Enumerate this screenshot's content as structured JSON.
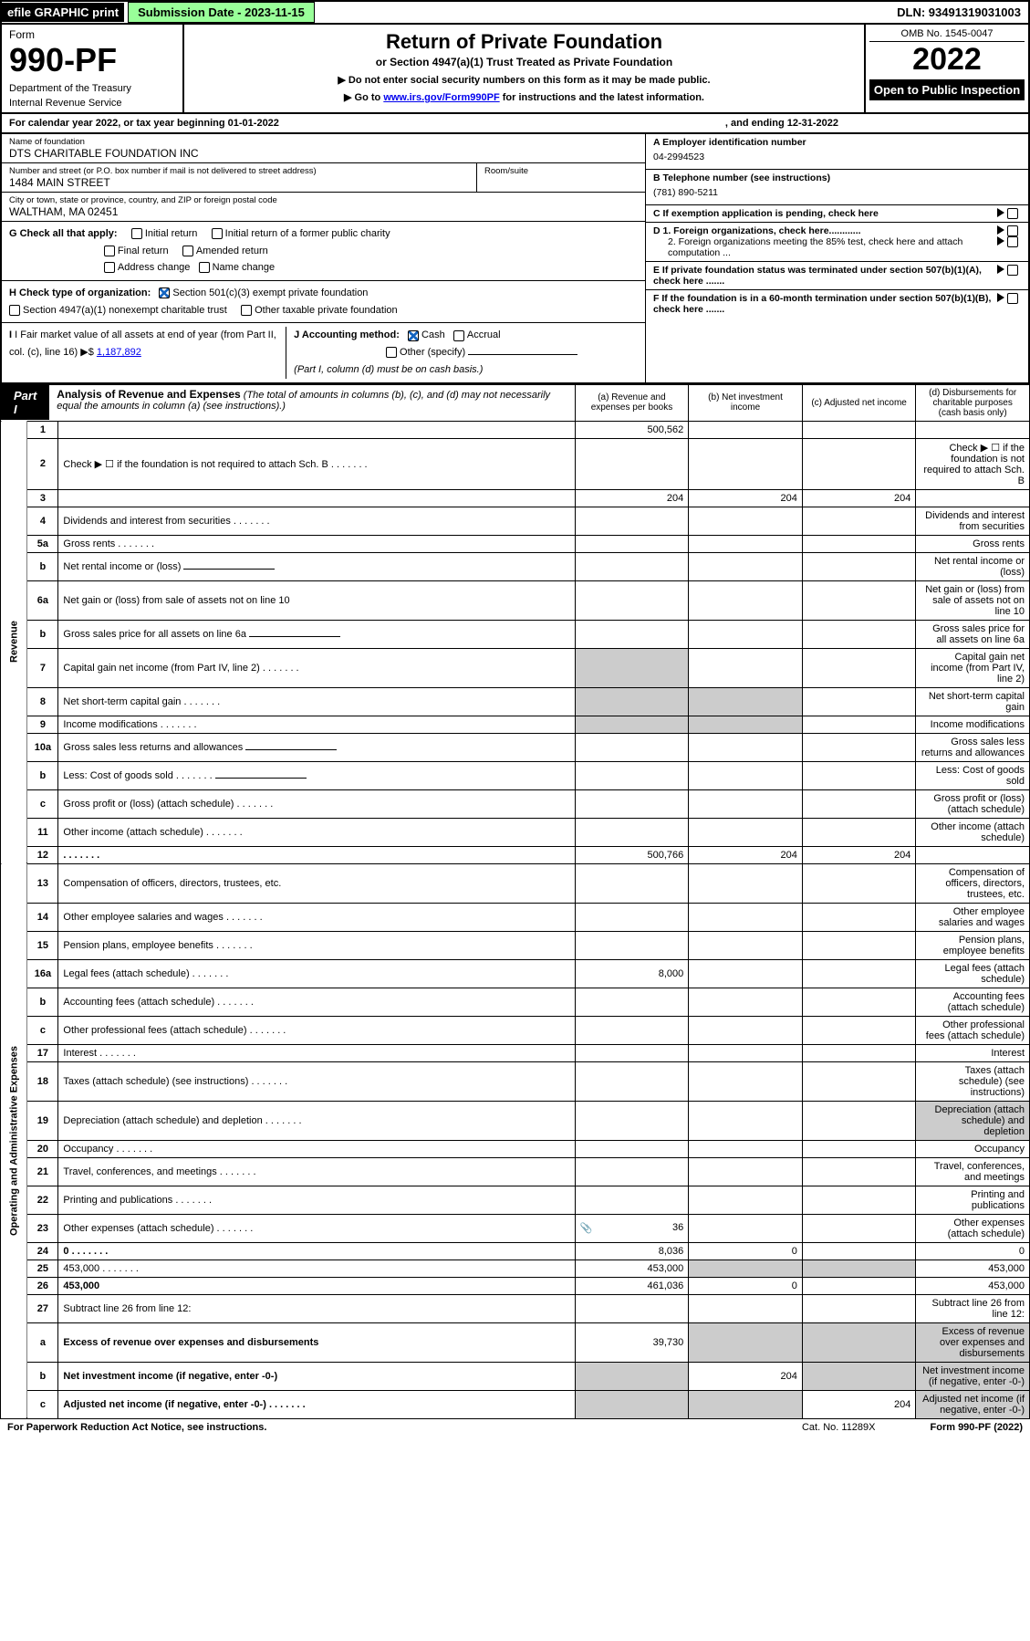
{
  "topbar": {
    "efile": "efile GRAPHIC print",
    "submission": "Submission Date - 2023-11-15",
    "dln": "DLN: 93491319031003"
  },
  "header": {
    "form_word": "Form",
    "form_no": "990-PF",
    "dept1": "Department of the Treasury",
    "dept2": "Internal Revenue Service",
    "title": "Return of Private Foundation",
    "subtitle": "or Section 4947(a)(1) Trust Treated as Private Foundation",
    "note1": "▶ Do not enter social security numbers on this form as it may be made public.",
    "note2_pre": "▶ Go to ",
    "note2_link": "www.irs.gov/Form990PF",
    "note2_post": " for instructions and the latest information.",
    "omb": "OMB No. 1545-0047",
    "year": "2022",
    "otp": "Open to Public Inspection"
  },
  "calendar": {
    "text": "For calendar year 2022, or tax year beginning 01-01-2022",
    "ending": ", and ending 12-31-2022"
  },
  "org": {
    "name_label": "Name of foundation",
    "name": "DTS CHARITABLE FOUNDATION INC",
    "addr_label": "Number and street (or P.O. box number if mail is not delivered to street address)",
    "addr": "1484 MAIN STREET",
    "room_label": "Room/suite",
    "city_label": "City or town, state or province, country, and ZIP or foreign postal code",
    "city": "WALTHAM, MA  02451",
    "ein_label": "A Employer identification number",
    "ein": "04-2994523",
    "phone_label": "B Telephone number (see instructions)",
    "phone": "(781) 890-5211",
    "c_label": "C If exemption application is pending, check here",
    "d1": "D 1. Foreign organizations, check here............",
    "d2": "2. Foreign organizations meeting the 85% test, check here and attach computation ...",
    "e": "E   If private foundation status was terminated under section 507(b)(1)(A), check here .......",
    "f": "F   If the foundation is in a 60-month termination under section 507(b)(1)(B), check here .......",
    "g_label": "G Check all that apply:",
    "g_opts": [
      "Initial return",
      "Initial return of a former public charity",
      "Final return",
      "Amended return",
      "Address change",
      "Name change"
    ],
    "h_label": "H Check type of organization:",
    "h_opt1": "Section 501(c)(3) exempt private foundation",
    "h_opt2": "Section 4947(a)(1) nonexempt charitable trust",
    "h_opt3": "Other taxable private foundation",
    "i_label": "I Fair market value of all assets at end of year (from Part II, col. (c), line 16) ▶$",
    "i_val": "1,187,892",
    "j_label": "J Accounting method:",
    "j_cash": "Cash",
    "j_accrual": "Accrual",
    "j_other": "Other (specify)",
    "j_note": "(Part I, column (d) must be on cash basis.)"
  },
  "part1": {
    "tag": "Part I",
    "title": "Analysis of Revenue and Expenses",
    "title_note": " (The total of amounts in columns (b), (c), and (d) may not necessarily equal the amounts in column (a) (see instructions).)",
    "col_a": "(a)   Revenue and expenses per books",
    "col_b": "(b)   Net investment income",
    "col_c": "(c)   Adjusted net income",
    "col_d": "(d)   Disbursements for charitable purposes (cash basis only)",
    "side_rev": "Revenue",
    "side_exp": "Operating and Administrative Expenses"
  },
  "rows": [
    {
      "n": "1",
      "d": "",
      "a": "500,562",
      "b": "",
      "c": ""
    },
    {
      "n": "2",
      "d": "Check ▶ ☐ if the foundation is not required to attach Sch. B",
      "dots": true
    },
    {
      "n": "3",
      "d": "",
      "a": "204",
      "b": "204",
      "c": "204"
    },
    {
      "n": "4",
      "d": "Dividends and interest from securities",
      "dots": true
    },
    {
      "n": "5a",
      "d": "Gross rents",
      "dots": true
    },
    {
      "n": "b",
      "d": "Net rental income or (loss)",
      "inline": true
    },
    {
      "n": "6a",
      "d": "Net gain or (loss) from sale of assets not on line 10"
    },
    {
      "n": "b",
      "d": "Gross sales price for all assets on line 6a",
      "inline": true
    },
    {
      "n": "7",
      "d": "Capital gain net income (from Part IV, line 2)",
      "dots": true,
      "shade_a": true
    },
    {
      "n": "8",
      "d": "Net short-term capital gain",
      "dots": true,
      "shade_a": true,
      "shade_b": true
    },
    {
      "n": "9",
      "d": "Income modifications",
      "dots": true,
      "shade_a": true,
      "shade_b": true
    },
    {
      "n": "10a",
      "d": "Gross sales less returns and allowances",
      "inline": true
    },
    {
      "n": "b",
      "d": "Less: Cost of goods sold",
      "dots": true,
      "inline": true
    },
    {
      "n": "c",
      "d": "Gross profit or (loss) (attach schedule)",
      "dots": true
    },
    {
      "n": "11",
      "d": "Other income (attach schedule)",
      "dots": true
    },
    {
      "n": "12",
      "d": "",
      "dots": true,
      "bold": true,
      "a": "500,766",
      "b": "204",
      "c": "204"
    },
    {
      "n": "13",
      "d": "Compensation of officers, directors, trustees, etc."
    },
    {
      "n": "14",
      "d": "Other employee salaries and wages",
      "dots": true
    },
    {
      "n": "15",
      "d": "Pension plans, employee benefits",
      "dots": true
    },
    {
      "n": "16a",
      "d": "Legal fees (attach schedule)",
      "dots": true,
      "a": "8,000"
    },
    {
      "n": "b",
      "d": "Accounting fees (attach schedule)",
      "dots": true
    },
    {
      "n": "c",
      "d": "Other professional fees (attach schedule)",
      "dots": true
    },
    {
      "n": "17",
      "d": "Interest",
      "dots": true
    },
    {
      "n": "18",
      "d": "Taxes (attach schedule) (see instructions)",
      "dots": true
    },
    {
      "n": "19",
      "d": "Depreciation (attach schedule) and depletion",
      "dots": true,
      "shade_d": true
    },
    {
      "n": "20",
      "d": "Occupancy",
      "dots": true
    },
    {
      "n": "21",
      "d": "Travel, conferences, and meetings",
      "dots": true
    },
    {
      "n": "22",
      "d": "Printing and publications",
      "dots": true
    },
    {
      "n": "23",
      "d": "Other expenses (attach schedule)",
      "dots": true,
      "a": "36",
      "icon": true
    },
    {
      "n": "24",
      "d": "0",
      "dots": true,
      "bold": true,
      "a": "8,036",
      "b": "0",
      "c": ""
    },
    {
      "n": "25",
      "d": "453,000",
      "dots": true,
      "a": "453,000",
      "shade_b": true,
      "shade_c": true
    },
    {
      "n": "26",
      "d": "453,000",
      "bold": true,
      "a": "461,036",
      "b": "0",
      "c": ""
    },
    {
      "n": "27",
      "d": "Subtract line 26 from line 12:"
    },
    {
      "n": "a",
      "d": "Excess of revenue over expenses and disbursements",
      "bold": true,
      "a": "39,730",
      "shade_b": true,
      "shade_c": true,
      "shade_d": true
    },
    {
      "n": "b",
      "d": "Net investment income (if negative, enter -0-)",
      "bold": true,
      "shade_a": true,
      "b": "204",
      "shade_c": true,
      "shade_d": true
    },
    {
      "n": "c",
      "d": "Adjusted net income (if negative, enter -0-)",
      "dots": true,
      "bold": true,
      "shade_a": true,
      "shade_b": true,
      "c": "204",
      "shade_d": true
    }
  ],
  "footer": {
    "pra": "For Paperwork Reduction Act Notice, see instructions.",
    "cat": "Cat. No. 11289X",
    "formref": "Form 990-PF (2022)"
  }
}
